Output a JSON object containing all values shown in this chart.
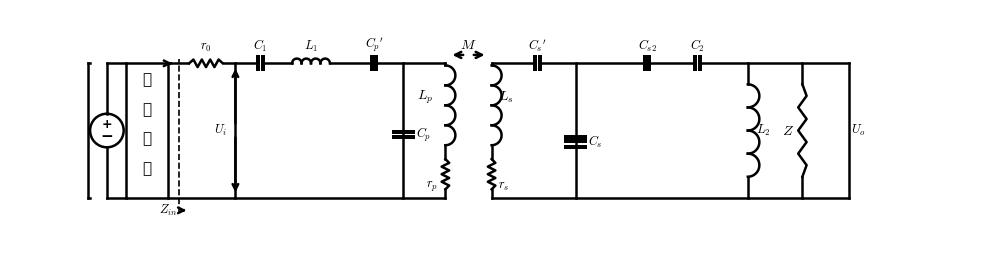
{
  "figsize": [
    10.0,
    2.56
  ],
  "dpi": 100,
  "bg_color": "#ffffff",
  "line_color": "#000000",
  "line_width": 1.8,
  "label_fontsize": 9,
  "labels": {
    "r0": "$r_0$",
    "C1": "$C_1$",
    "L1": "$L_1$",
    "Cp_prime": "$C_p{}'$",
    "Cp": "$C_p$",
    "Lp": "$L_p$",
    "rp": "$r_p$",
    "M": "$M$",
    "Ls": "$L_s$",
    "rs": "$r_s$",
    "Cs_prime": "$C_s{}'$",
    "Cs": "$C_s$",
    "Cs2": "$C_{s2}$",
    "C2": "$C_2$",
    "L2": "$L_2$",
    "Z": "$Z$",
    "Ui": "$U_i$",
    "Uo": "$U_o$",
    "Zin": "$Z_{in}$",
    "inverter": "逆变电路"
  }
}
